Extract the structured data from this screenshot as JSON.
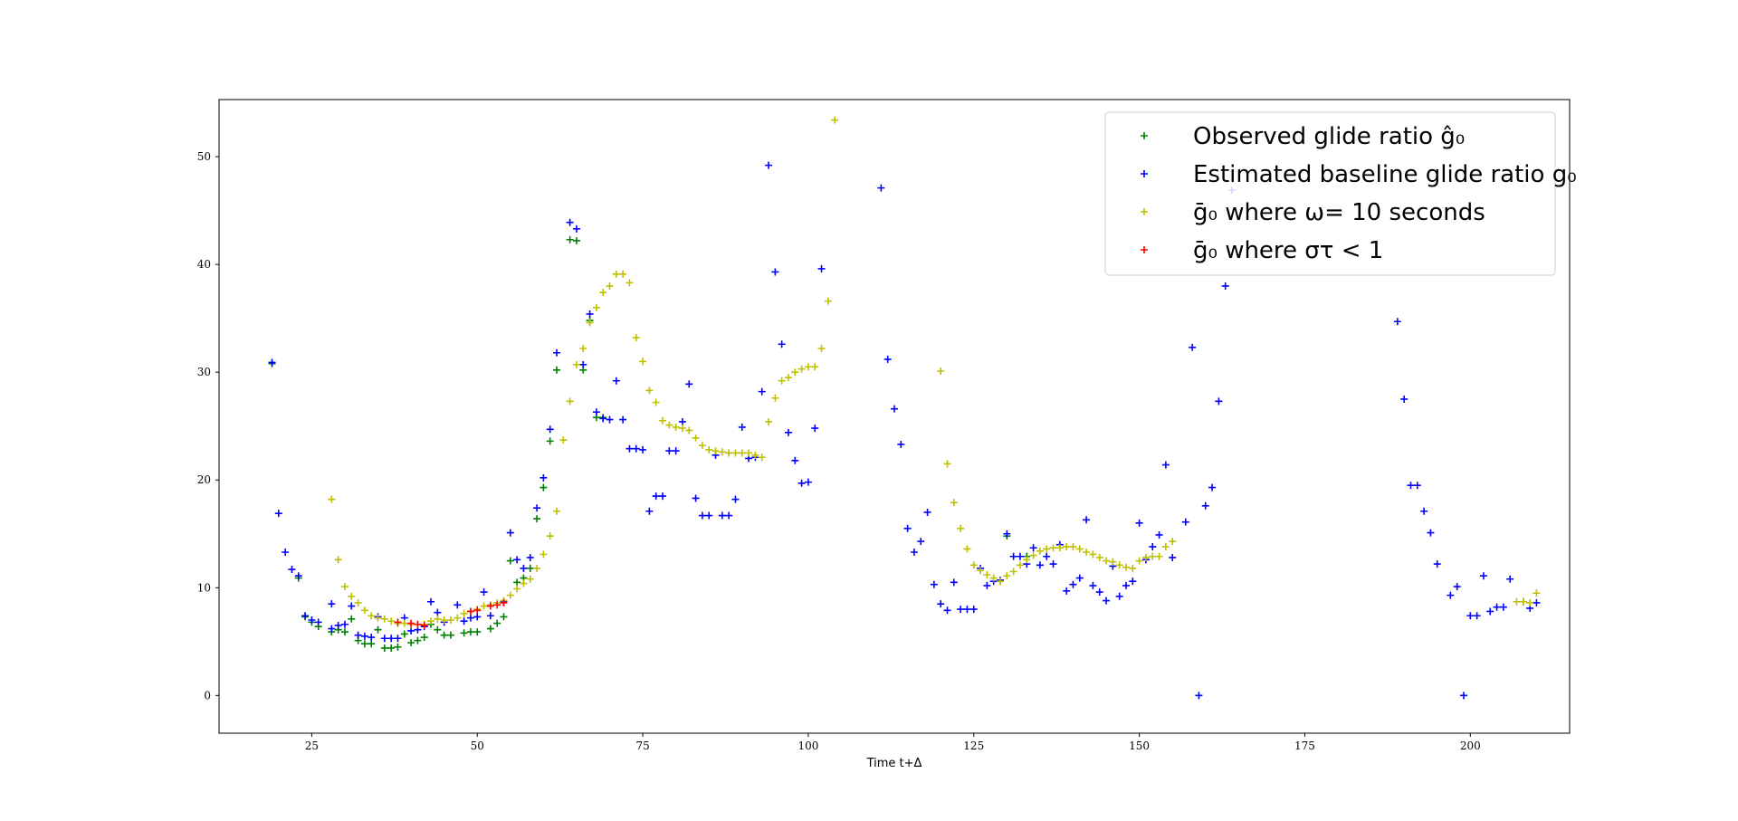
{
  "chart_data": {
    "type": "scatter",
    "xlabel": "Time t+Δ",
    "ylabel": "",
    "xlim": [
      11,
      215
    ],
    "ylim": [
      -3.5,
      55.3
    ],
    "xticks": [
      25,
      50,
      75,
      100,
      125,
      150,
      175,
      200
    ],
    "yticks": [
      0,
      10,
      20,
      30,
      40,
      50
    ],
    "grid": false,
    "legend_position": "top-right",
    "marker": "+",
    "series": [
      {
        "name": "Observed glide ratio ĝ₀",
        "color": "#008000",
        "points": [
          [
            19,
            30.8
          ],
          [
            23,
            10.9
          ],
          [
            24,
            7.3
          ],
          [
            25,
            6.8
          ],
          [
            26,
            6.4
          ],
          [
            28,
            5.9
          ],
          [
            29,
            6.1
          ],
          [
            30,
            5.9
          ],
          [
            31,
            7.1
          ],
          [
            32,
            5.1
          ],
          [
            33,
            4.8
          ],
          [
            34,
            4.8
          ],
          [
            35,
            6.1
          ],
          [
            36,
            4.4
          ],
          [
            37,
            4.4
          ],
          [
            38,
            4.5
          ],
          [
            39,
            5.7
          ],
          [
            40,
            4.9
          ],
          [
            41,
            5.1
          ],
          [
            42,
            5.4
          ],
          [
            43,
            6.6
          ],
          [
            44,
            6.1
          ],
          [
            45,
            5.6
          ],
          [
            46,
            5.6
          ],
          [
            48,
            5.8
          ],
          [
            49,
            5.9
          ],
          [
            50,
            5.9
          ],
          [
            52,
            6.2
          ],
          [
            53,
            6.7
          ],
          [
            54,
            7.3
          ],
          [
            55,
            12.5
          ],
          [
            56,
            10.5
          ],
          [
            57,
            10.9
          ],
          [
            58,
            11.8
          ],
          [
            59,
            16.4
          ],
          [
            60,
            19.3
          ],
          [
            61,
            23.6
          ],
          [
            62,
            30.2
          ],
          [
            64,
            42.3
          ],
          [
            65,
            42.2
          ],
          [
            66,
            30.2
          ],
          [
            67,
            34.8
          ],
          [
            68,
            25.8
          ],
          [
            69,
            25.8
          ],
          [
            130,
            14.8
          ],
          [
            133,
            12.9
          ]
        ]
      },
      {
        "name": "Estimated baseline glide ratio g₀",
        "color": "#0000ff",
        "points": [
          [
            19,
            30.9
          ],
          [
            20,
            16.9
          ],
          [
            21,
            13.3
          ],
          [
            22,
            11.7
          ],
          [
            23,
            11.1
          ],
          [
            24,
            7.4
          ],
          [
            25,
            7.0
          ],
          [
            26,
            6.8
          ],
          [
            28,
            8.5
          ],
          [
            28,
            6.2
          ],
          [
            29,
            6.5
          ],
          [
            30,
            6.6
          ],
          [
            31,
            8.3
          ],
          [
            32,
            5.6
          ],
          [
            33,
            5.5
          ],
          [
            34,
            5.4
          ],
          [
            35,
            7.3
          ],
          [
            36,
            5.3
          ],
          [
            37,
            5.3
          ],
          [
            38,
            5.3
          ],
          [
            39,
            7.2
          ],
          [
            40,
            6.0
          ],
          [
            41,
            6.1
          ],
          [
            42,
            6.4
          ],
          [
            43,
            8.7
          ],
          [
            44,
            7.7
          ],
          [
            45,
            6.8
          ],
          [
            47,
            8.4
          ],
          [
            48,
            6.9
          ],
          [
            49,
            7.2
          ],
          [
            50,
            7.3
          ],
          [
            51,
            9.6
          ],
          [
            52,
            7.4
          ],
          [
            54,
            8.7
          ],
          [
            55,
            15.1
          ],
          [
            56,
            12.6
          ],
          [
            57,
            11.8
          ],
          [
            58,
            12.8
          ],
          [
            59,
            17.4
          ],
          [
            60,
            20.2
          ],
          [
            61,
            24.7
          ],
          [
            62,
            31.8
          ],
          [
            64,
            43.9
          ],
          [
            65,
            43.3
          ],
          [
            66,
            30.7
          ],
          [
            67,
            35.4
          ],
          [
            68,
            26.3
          ],
          [
            69,
            25.7
          ],
          [
            70,
            25.6
          ],
          [
            71,
            29.2
          ],
          [
            72,
            25.6
          ],
          [
            73,
            22.9
          ],
          [
            74,
            22.9
          ],
          [
            75,
            22.8
          ],
          [
            76,
            17.1
          ],
          [
            77,
            18.5
          ],
          [
            78,
            18.5
          ],
          [
            79,
            22.7
          ],
          [
            80,
            22.7
          ],
          [
            81,
            25.4
          ],
          [
            82,
            28.9
          ],
          [
            83,
            18.3
          ],
          [
            84,
            16.7
          ],
          [
            85,
            16.7
          ],
          [
            86,
            22.3
          ],
          [
            87,
            16.7
          ],
          [
            88,
            16.7
          ],
          [
            89,
            18.2
          ],
          [
            90,
            24.9
          ],
          [
            91,
            22.0
          ],
          [
            92,
            22.1
          ],
          [
            93,
            28.2
          ],
          [
            94,
            49.2
          ],
          [
            95,
            39.3
          ],
          [
            96,
            32.6
          ],
          [
            97,
            24.4
          ],
          [
            98,
            21.8
          ],
          [
            99,
            19.7
          ],
          [
            100,
            19.8
          ],
          [
            101,
            24.8
          ],
          [
            102,
            39.6
          ],
          [
            111,
            47.1
          ],
          [
            112,
            31.2
          ],
          [
            113,
            26.6
          ],
          [
            114,
            23.3
          ],
          [
            115,
            15.5
          ],
          [
            116,
            13.3
          ],
          [
            117,
            14.3
          ],
          [
            118,
            17.0
          ],
          [
            119,
            10.3
          ],
          [
            120,
            8.5
          ],
          [
            121,
            7.9
          ],
          [
            122,
            10.5
          ],
          [
            123,
            8.0
          ],
          [
            124,
            8.0
          ],
          [
            125,
            8.0
          ],
          [
            126,
            11.8
          ],
          [
            127,
            10.2
          ],
          [
            128,
            10.6
          ],
          [
            129,
            10.7
          ],
          [
            130,
            15.0
          ],
          [
            131,
            12.9
          ],
          [
            132,
            12.9
          ],
          [
            133,
            12.2
          ],
          [
            134,
            13.7
          ],
          [
            135,
            12.1
          ],
          [
            136,
            12.9
          ],
          [
            137,
            12.2
          ],
          [
            138,
            14.0
          ],
          [
            139,
            9.7
          ],
          [
            140,
            10.3
          ],
          [
            141,
            10.9
          ],
          [
            142,
            16.3
          ],
          [
            143,
            10.2
          ],
          [
            144,
            9.6
          ],
          [
            145,
            8.8
          ],
          [
            146,
            12.0
          ],
          [
            147,
            9.2
          ],
          [
            148,
            10.2
          ],
          [
            149,
            10.6
          ],
          [
            150,
            16.0
          ],
          [
            151,
            12.6
          ],
          [
            152,
            13.8
          ],
          [
            153,
            14.9
          ],
          [
            154,
            21.4
          ],
          [
            155,
            12.8
          ],
          [
            157,
            16.1
          ],
          [
            158,
            32.3
          ],
          [
            159,
            0.0
          ],
          [
            160,
            17.6
          ],
          [
            161,
            19.3
          ],
          [
            162,
            27.3
          ],
          [
            163,
            38.0
          ],
          [
            164,
            46.9
          ],
          [
            189,
            34.7
          ],
          [
            190,
            27.5
          ],
          [
            191,
            19.5
          ],
          [
            192,
            19.5
          ],
          [
            193,
            17.1
          ],
          [
            194,
            15.1
          ],
          [
            195,
            12.2
          ],
          [
            197,
            9.3
          ],
          [
            198,
            10.1
          ],
          [
            199,
            0.0
          ],
          [
            200,
            7.4
          ],
          [
            201,
            7.4
          ],
          [
            202,
            11.1
          ],
          [
            203,
            7.8
          ],
          [
            204,
            8.2
          ],
          [
            205,
            8.2
          ],
          [
            206,
            10.8
          ],
          [
            208,
            8.7
          ],
          [
            209,
            8.1
          ],
          [
            210,
            8.6
          ]
        ]
      },
      {
        "name": "ḡ₀ where ω= 10 seconds",
        "color": "#bfbf00",
        "points": [
          [
            28,
            18.2
          ],
          [
            29,
            12.6
          ],
          [
            30,
            10.1
          ],
          [
            31,
            9.2
          ],
          [
            32,
            8.6
          ],
          [
            33,
            7.9
          ],
          [
            34,
            7.4
          ],
          [
            35,
            7.2
          ],
          [
            36,
            7.1
          ],
          [
            37,
            6.9
          ],
          [
            38,
            6.7
          ],
          [
            39,
            6.7
          ],
          [
            40,
            6.6
          ],
          [
            41,
            6.6
          ],
          [
            42,
            6.6
          ],
          [
            43,
            6.9
          ],
          [
            44,
            7.1
          ],
          [
            45,
            7.0
          ],
          [
            46,
            7.0
          ],
          [
            47,
            7.2
          ],
          [
            48,
            7.6
          ],
          [
            49,
            7.8
          ],
          [
            50,
            8.0
          ],
          [
            51,
            8.3
          ],
          [
            52,
            8.4
          ],
          [
            53,
            8.6
          ],
          [
            54,
            8.8
          ],
          [
            55,
            9.3
          ],
          [
            56,
            9.9
          ],
          [
            57,
            10.4
          ],
          [
            58,
            10.8
          ],
          [
            59,
            11.8
          ],
          [
            60,
            13.1
          ],
          [
            61,
            14.8
          ],
          [
            62,
            17.1
          ],
          [
            63,
            23.7
          ],
          [
            64,
            27.3
          ],
          [
            65,
            30.7
          ],
          [
            66,
            32.2
          ],
          [
            67,
            34.6
          ],
          [
            68,
            36.0
          ],
          [
            69,
            37.4
          ],
          [
            70,
            38.0
          ],
          [
            71,
            39.1
          ],
          [
            72,
            39.1
          ],
          [
            73,
            38.3
          ],
          [
            74,
            33.2
          ],
          [
            75,
            31.0
          ],
          [
            76,
            28.3
          ],
          [
            77,
            27.2
          ],
          [
            78,
            25.5
          ],
          [
            79,
            25.1
          ],
          [
            80,
            24.9
          ],
          [
            81,
            24.8
          ],
          [
            82,
            24.6
          ],
          [
            83,
            23.9
          ],
          [
            84,
            23.2
          ],
          [
            85,
            22.8
          ],
          [
            86,
            22.7
          ],
          [
            87,
            22.6
          ],
          [
            88,
            22.5
          ],
          [
            89,
            22.5
          ],
          [
            90,
            22.5
          ],
          [
            91,
            22.5
          ],
          [
            92,
            22.3
          ],
          [
            93,
            22.1
          ],
          [
            94,
            25.4
          ],
          [
            95,
            27.6
          ],
          [
            96,
            29.2
          ],
          [
            97,
            29.5
          ],
          [
            98,
            30.0
          ],
          [
            99,
            30.3
          ],
          [
            100,
            30.5
          ],
          [
            101,
            30.5
          ],
          [
            102,
            32.2
          ],
          [
            103,
            36.6
          ],
          [
            104,
            53.4
          ],
          [
            120,
            30.1
          ],
          [
            121,
            21.5
          ],
          [
            122,
            17.9
          ],
          [
            123,
            15.5
          ],
          [
            124,
            13.6
          ],
          [
            125,
            12.1
          ],
          [
            126,
            11.6
          ],
          [
            127,
            11.2
          ],
          [
            128,
            10.9
          ],
          [
            129,
            10.6
          ],
          [
            130,
            11.1
          ],
          [
            131,
            11.5
          ],
          [
            132,
            12.1
          ],
          [
            133,
            12.6
          ],
          [
            134,
            13.0
          ],
          [
            135,
            13.4
          ],
          [
            136,
            13.6
          ],
          [
            137,
            13.7
          ],
          [
            138,
            13.7
          ],
          [
            139,
            13.8
          ],
          [
            140,
            13.8
          ],
          [
            141,
            13.6
          ],
          [
            142,
            13.3
          ],
          [
            143,
            13.1
          ],
          [
            144,
            12.8
          ],
          [
            145,
            12.5
          ],
          [
            146,
            12.4
          ],
          [
            147,
            12.1
          ],
          [
            148,
            11.9
          ],
          [
            149,
            11.8
          ],
          [
            150,
            12.5
          ],
          [
            151,
            12.8
          ],
          [
            152,
            12.9
          ],
          [
            153,
            12.9
          ],
          [
            154,
            13.8
          ],
          [
            155,
            14.3
          ],
          [
            207,
            8.7
          ],
          [
            208,
            8.7
          ],
          [
            209,
            8.6
          ],
          [
            210,
            9.5
          ]
        ]
      },
      {
        "name": "ḡ₀ where στ < 1",
        "color": "#ff0000",
        "points": [
          [
            38,
            6.8
          ],
          [
            40,
            6.7
          ],
          [
            41,
            6.6
          ],
          [
            42,
            6.5
          ],
          [
            49,
            7.8
          ],
          [
            50,
            7.9
          ],
          [
            52,
            8.3
          ],
          [
            53,
            8.4
          ],
          [
            54,
            8.6
          ]
        ]
      }
    ]
  }
}
